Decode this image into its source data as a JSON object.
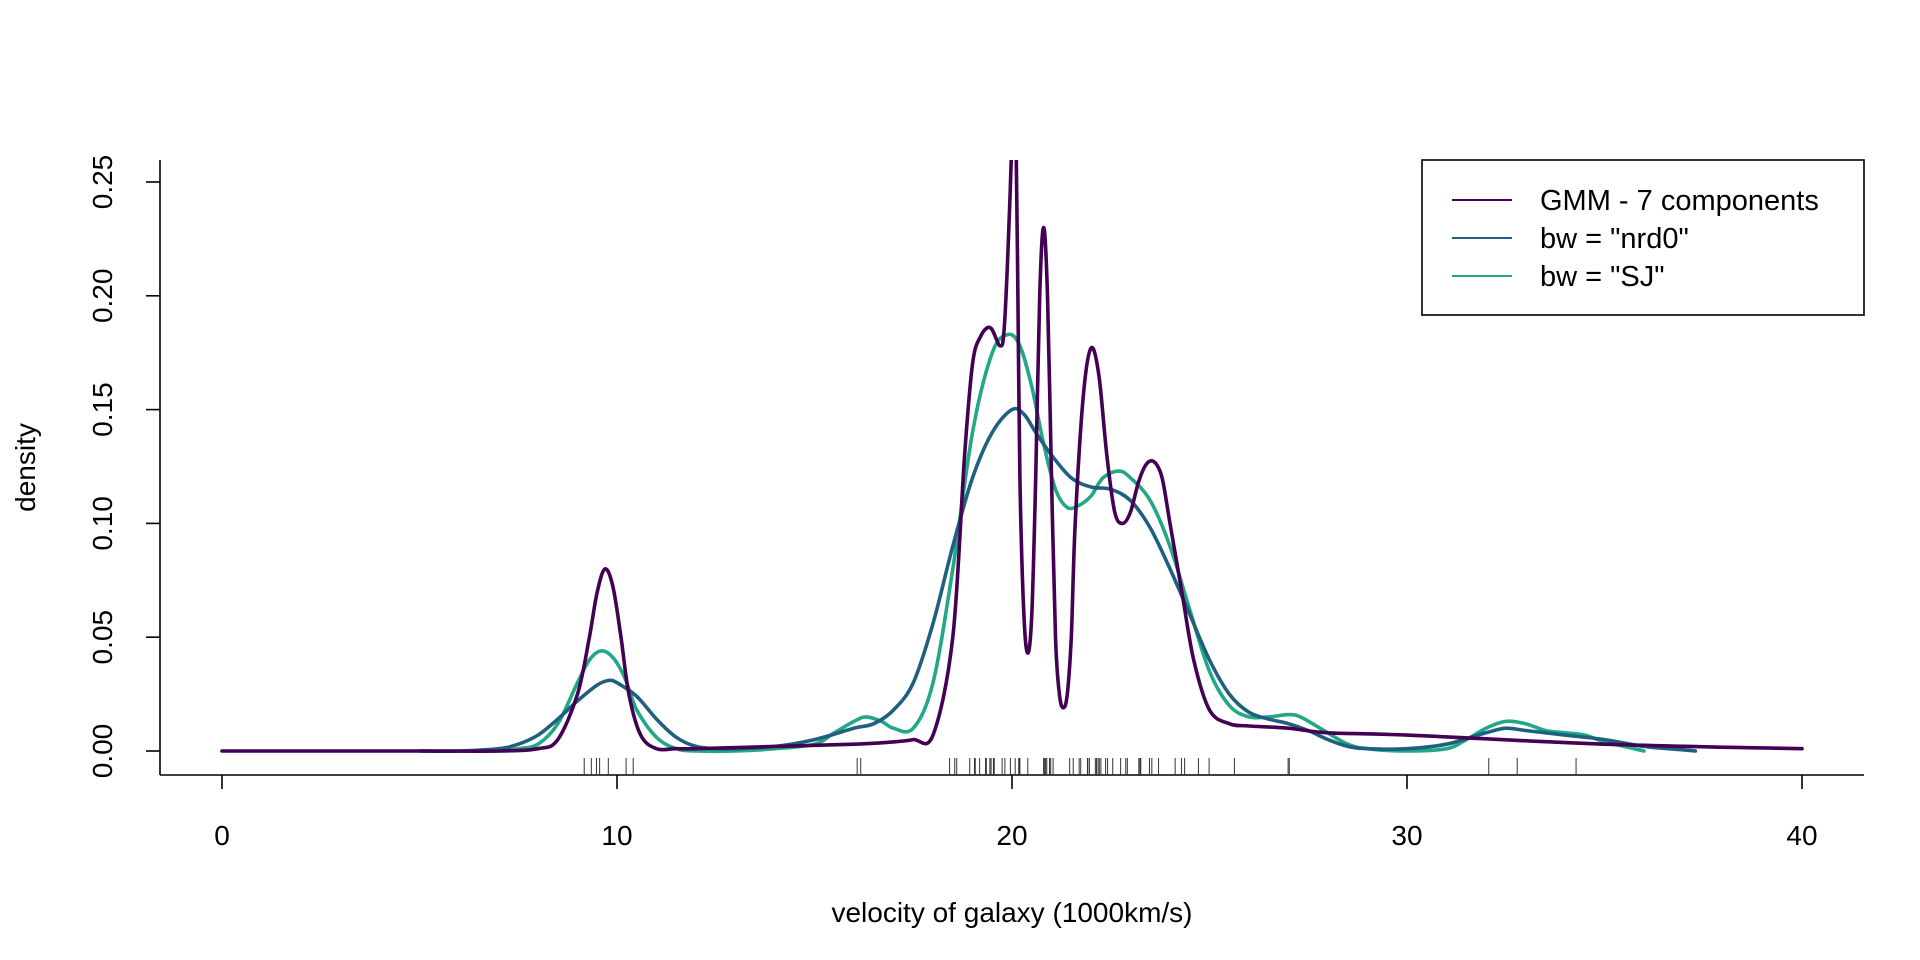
{
  "chart_data": {
    "type": "line",
    "xlabel": "velocity of galaxy (1000km/s)",
    "ylabel": "density",
    "xlim": [
      0,
      40
    ],
    "ylim": [
      -0.01,
      0.26
    ],
    "x_ticks": [
      "0",
      "10",
      "20",
      "30",
      "40"
    ],
    "y_ticks": [
      "0.00",
      "0.05",
      "0.10",
      "0.15",
      "0.20",
      "0.25"
    ],
    "legend_position": "top-right",
    "series": [
      {
        "name": "GMM - 7 components",
        "color": "#440154",
        "x": [
          0,
          5,
          7,
          8,
          8.5,
          9,
          9.3,
          9.5,
          9.7,
          9.9,
          10.1,
          10.3,
          10.6,
          11,
          11.5,
          12,
          14,
          16,
          17,
          17.5,
          18,
          18.5,
          18.8,
          19,
          19.2,
          19.45,
          19.7,
          19.8,
          19.9,
          20.0,
          20.05,
          20.1,
          20.15,
          20.2,
          20.3,
          20.4,
          20.5,
          20.6,
          20.7,
          20.8,
          20.9,
          21.0,
          21.1,
          21.2,
          21.3,
          21.4,
          21.5,
          21.6,
          21.8,
          22.0,
          22.2,
          22.4,
          22.6,
          22.8,
          23.0,
          23.2,
          23.4,
          23.6,
          23.8,
          24.0,
          24.3,
          24.6,
          25,
          25.5,
          26,
          27,
          28,
          30,
          35,
          40
        ],
        "y": [
          0,
          0,
          0,
          0.001,
          0.005,
          0.025,
          0.05,
          0.07,
          0.08,
          0.072,
          0.05,
          0.025,
          0.007,
          0.001,
          0.001,
          0.001,
          0.002,
          0.003,
          0.004,
          0.005,
          0.007,
          0.05,
          0.13,
          0.17,
          0.182,
          0.186,
          0.178,
          0.185,
          0.22,
          0.27,
          0.3,
          0.27,
          0.2,
          0.12,
          0.06,
          0.043,
          0.06,
          0.12,
          0.2,
          0.23,
          0.2,
          0.12,
          0.05,
          0.025,
          0.019,
          0.025,
          0.05,
          0.1,
          0.155,
          0.177,
          0.165,
          0.13,
          0.105,
          0.1,
          0.105,
          0.118,
          0.126,
          0.127,
          0.12,
          0.1,
          0.07,
          0.04,
          0.018,
          0.012,
          0.011,
          0.01,
          0.008,
          0.007,
          0.003,
          0.001
        ]
      },
      {
        "name": "bw = \"nrd0\"",
        "color": "#1F5F7F",
        "x": [
          5,
          6,
          7,
          7.5,
          8,
          8.5,
          9,
          9.5,
          9.8,
          10,
          10.5,
          11,
          11.5,
          12,
          12.5,
          13,
          14,
          15,
          16,
          16.5,
          17,
          17.5,
          18,
          18.5,
          19,
          19.5,
          20,
          20.3,
          20.6,
          21,
          21.5,
          22,
          22.5,
          23,
          23.5,
          24,
          24.5,
          25,
          25.5,
          26,
          26.5,
          27,
          27.5,
          28,
          28.5,
          29,
          30,
          31,
          32,
          32.5,
          33,
          34,
          35,
          36,
          37,
          37.3
        ],
        "y": [
          0,
          0,
          0.001,
          0.003,
          0.007,
          0.014,
          0.022,
          0.029,
          0.031,
          0.03,
          0.024,
          0.014,
          0.006,
          0.002,
          0.001,
          0.001,
          0.002,
          0.005,
          0.01,
          0.012,
          0.018,
          0.03,
          0.056,
          0.09,
          0.12,
          0.14,
          0.15,
          0.148,
          0.14,
          0.13,
          0.12,
          0.116,
          0.115,
          0.11,
          0.098,
          0.08,
          0.06,
          0.04,
          0.025,
          0.017,
          0.014,
          0.012,
          0.009,
          0.005,
          0.002,
          0.001,
          0.001,
          0.003,
          0.008,
          0.01,
          0.009,
          0.007,
          0.005,
          0.002,
          0.0005,
          0
        ]
      },
      {
        "name": "bw = \"SJ\"",
        "color": "#22A884",
        "x": [
          5,
          6,
          7,
          7.5,
          8,
          8.5,
          9,
          9.3,
          9.6,
          9.9,
          10.2,
          10.5,
          11,
          11.5,
          12,
          13,
          14,
          15,
          15.5,
          16,
          16.3,
          16.7,
          17,
          17.5,
          18,
          18.5,
          19,
          19.5,
          19.9,
          20.2,
          20.5,
          20.8,
          21.1,
          21.4,
          21.7,
          22,
          22.3,
          22.7,
          23,
          23.5,
          24,
          24.5,
          25,
          25.5,
          26,
          26.5,
          27,
          27.3,
          27.8,
          28.5,
          29,
          30,
          31,
          31.5,
          32,
          32.5,
          33,
          33.5,
          34,
          34.5,
          35,
          35.5,
          36
        ],
        "y": [
          0,
          0,
          0,
          0.001,
          0.003,
          0.012,
          0.03,
          0.04,
          0.044,
          0.041,
          0.032,
          0.018,
          0.006,
          0.001,
          0,
          0,
          0.001,
          0.003,
          0.008,
          0.013,
          0.015,
          0.013,
          0.01,
          0.01,
          0.03,
          0.08,
          0.14,
          0.175,
          0.183,
          0.178,
          0.16,
          0.135,
          0.115,
          0.107,
          0.108,
          0.112,
          0.12,
          0.123,
          0.12,
          0.11,
          0.09,
          0.062,
          0.035,
          0.02,
          0.015,
          0.015,
          0.016,
          0.015,
          0.01,
          0.003,
          0.001,
          0,
          0.001,
          0.005,
          0.01,
          0.013,
          0.012,
          0.009,
          0.008,
          0.007,
          0.004,
          0.002,
          0
        ]
      }
    ],
    "rug": [
      9.17,
      9.35,
      9.48,
      9.56,
      9.78,
      10.23,
      10.41,
      16.08,
      16.17,
      18.42,
      18.55,
      18.6,
      18.93,
      19.05,
      19.07,
      19.18,
      19.33,
      19.35,
      19.44,
      19.47,
      19.53,
      19.54,
      19.55,
      19.75,
      19.82,
      19.96,
      20.08,
      20.17,
      20.18,
      20.2,
      20.4,
      20.8,
      20.81,
      20.82,
      20.85,
      20.88,
      20.95,
      20.98,
      21.04,
      21.46,
      21.55,
      21.7,
      21.74,
      21.91,
      21.92,
      21.96,
      22.11,
      22.14,
      22.18,
      22.21,
      22.25,
      22.37,
      22.42,
      22.55,
      22.75,
      22.88,
      22.92,
      23.21,
      23.24,
      23.26,
      23.48,
      23.54,
      23.71,
      24.13,
      24.29,
      24.37,
      24.72,
      24.99,
      25.63,
      26.99,
      27.02,
      32.07,
      32.79,
      34.28
    ]
  }
}
